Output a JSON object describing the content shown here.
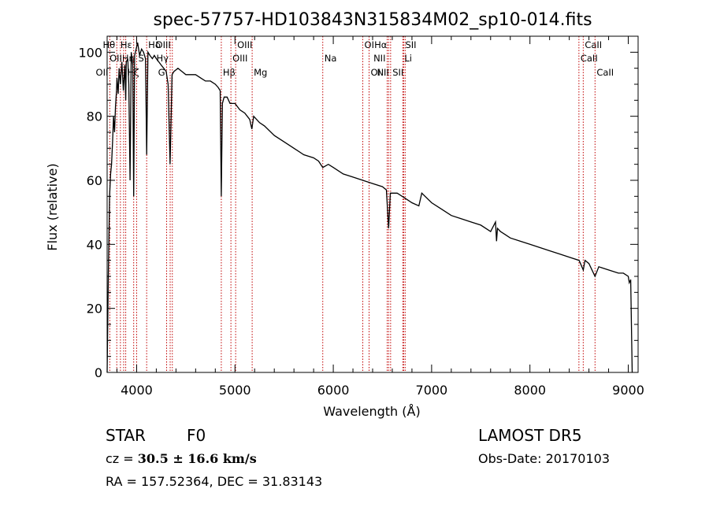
{
  "chart_data": {
    "type": "line",
    "title": "spec-57757-HD103843N315834M02_sp10-014.fits",
    "xlabel": "Wavelength (Å)",
    "ylabel": "Flux (relative)",
    "xlim": [
      3700,
      9100
    ],
    "ylim": [
      0,
      105
    ],
    "xticks": [
      "4000",
      "5000",
      "6000",
      "7000",
      "8000",
      "9000"
    ],
    "yticks": [
      "0",
      "20",
      "40",
      "60",
      "80",
      "100"
    ],
    "grid": false,
    "series": [
      {
        "x": [
          3700,
          3712,
          3725,
          3735,
          3745,
          3755,
          3765,
          3775,
          3785,
          3795,
          3800,
          3812,
          3822,
          3835,
          3850,
          3865,
          3880,
          3889,
          3895,
          3910,
          3920,
          3933,
          3945,
          3960,
          3970,
          3980,
          3995,
          4010,
          4030,
          4050,
          4070,
          4090,
          4102,
          4115,
          4135,
          4160,
          4180,
          4200,
          4225,
          4250,
          4275,
          4300,
          4320,
          4340,
          4360,
          4380,
          4420,
          4460,
          4500,
          4550,
          4600,
          4650,
          4700,
          4750,
          4800,
          4830,
          4850,
          4861,
          4872,
          4890,
          4920,
          4950,
          5000,
          5050,
          5100,
          5150,
          5172,
          5190,
          5250,
          5300,
          5400,
          5500,
          5600,
          5700,
          5800,
          5850,
          5893,
          5950,
          6000,
          6100,
          6200,
          6300,
          6400,
          6500,
          6540,
          6563,
          6580,
          6600,
          6650,
          6700,
          6750,
          6800,
          6870,
          6900,
          7000,
          7100,
          7200,
          7300,
          7400,
          7500,
          7600,
          7650,
          7660,
          7670,
          7700,
          7750,
          7800,
          7900,
          8000,
          8100,
          8200,
          8300,
          8400,
          8500,
          8542,
          8560,
          8600,
          8662,
          8700,
          8800,
          8900,
          8950,
          9000,
          9010,
          9025,
          9040
        ],
        "y": [
          0,
          30,
          55,
          62,
          65,
          72,
          80,
          75,
          83,
          88,
          92,
          87,
          95,
          90,
          97,
          88,
          96,
          85,
          97,
          98,
          90,
          60,
          100,
          96,
          55,
          99,
          101,
          103,
          99,
          101,
          100,
          98,
          68,
          100,
          99,
          98,
          99,
          98,
          97,
          96,
          95,
          94,
          90,
          65,
          93,
          94,
          95,
          94,
          93,
          93,
          93,
          92,
          91,
          91,
          90,
          89,
          88,
          55,
          84,
          86,
          86,
          84,
          84,
          82,
          81,
          79,
          76,
          80,
          78,
          77,
          74,
          72,
          70,
          68,
          67,
          66,
          64,
          65,
          64,
          62,
          61,
          60,
          59,
          58,
          57,
          45,
          56,
          56,
          56,
          55,
          54,
          53,
          52,
          56,
          53,
          51,
          49,
          48,
          47,
          46,
          44,
          47,
          41,
          45,
          44,
          43,
          42,
          41,
          40,
          39,
          38,
          37,
          36,
          35,
          32,
          35,
          34,
          30,
          33,
          32,
          31,
          31,
          30,
          28,
          29,
          0
        ]
      }
    ],
    "line_marks": [
      {
        "label": "OII",
        "wl": 3727,
        "row": 2,
        "side": "left"
      },
      {
        "label": "Hθ",
        "wl": 3798,
        "row": 0,
        "side": "left"
      },
      {
        "label": "Hη",
        "wl": 3835,
        "row": 1,
        "side": "right"
      },
      {
        "label": "OII",
        "wl": 3868,
        "row": 1,
        "side": "left"
      },
      {
        "label": "Hζ",
        "wl": 3889,
        "row": 2,
        "side": "right"
      },
      {
        "label": "Hε",
        "wl": 3970,
        "row": 0,
        "side": "left"
      },
      {
        "label": "S",
        "wl": 4000,
        "row": 1,
        "side": "right"
      },
      {
        "label": "Hδ",
        "wl": 4102,
        "row": 0,
        "side": "right"
      },
      {
        "label": "G",
        "wl": 4305,
        "row": 2,
        "side": "left"
      },
      {
        "label": "Hγ",
        "wl": 4341,
        "row": 1,
        "side": "left"
      },
      {
        "label": "OIII",
        "wl": 4363,
        "row": 0,
        "side": "left"
      },
      {
        "label": "Hβ",
        "wl": 4861,
        "row": 2,
        "side": "right"
      },
      {
        "label": "OIII",
        "wl": 4959,
        "row": 1,
        "side": "right"
      },
      {
        "label": "OIII",
        "wl": 5007,
        "row": 0,
        "side": "right"
      },
      {
        "label": "Mg",
        "wl": 5175,
        "row": 2,
        "side": "right"
      },
      {
        "label": "Na",
        "wl": 5893,
        "row": 1,
        "side": "right"
      },
      {
        "label": "OI",
        "wl": 6300,
        "row": 0,
        "side": "right"
      },
      {
        "label": "OI",
        "wl": 6364,
        "row": 2,
        "side": "right"
      },
      {
        "label": "NII",
        "wl": 6548,
        "row": 1,
        "side": "left"
      },
      {
        "label": "Hα",
        "wl": 6563,
        "row": 0,
        "side": "left"
      },
      {
        "label": "NII",
        "wl": 6583,
        "row": 2,
        "side": "left"
      },
      {
        "label": "Li",
        "wl": 6707,
        "row": 1,
        "side": "right"
      },
      {
        "label": "SII",
        "wl": 6716,
        "row": 0,
        "side": "right"
      },
      {
        "label": "SII",
        "wl": 6731,
        "row": 2,
        "side": "left"
      },
      {
        "label": "CaII",
        "wl": 8498,
        "row": 1,
        "side": "right"
      },
      {
        "label": "CaII",
        "wl": 8542,
        "row": 0,
        "side": "right"
      },
      {
        "label": "CaII",
        "wl": 8662,
        "row": 2,
        "side": "right"
      }
    ]
  },
  "info": {
    "obj_class": "STAR",
    "subclass": "F0",
    "survey": "LAMOST DR5",
    "cz_prefix": "cz = ",
    "cz_value": "30.5 ± 16.6 km/s",
    "obs_date": "Obs-Date: 20170103",
    "radec": "RA = 157.52364, DEC =  31.83143"
  },
  "colors": {
    "line_mark": "#c00000",
    "spectrum": "#000000",
    "axes": "#000000"
  }
}
